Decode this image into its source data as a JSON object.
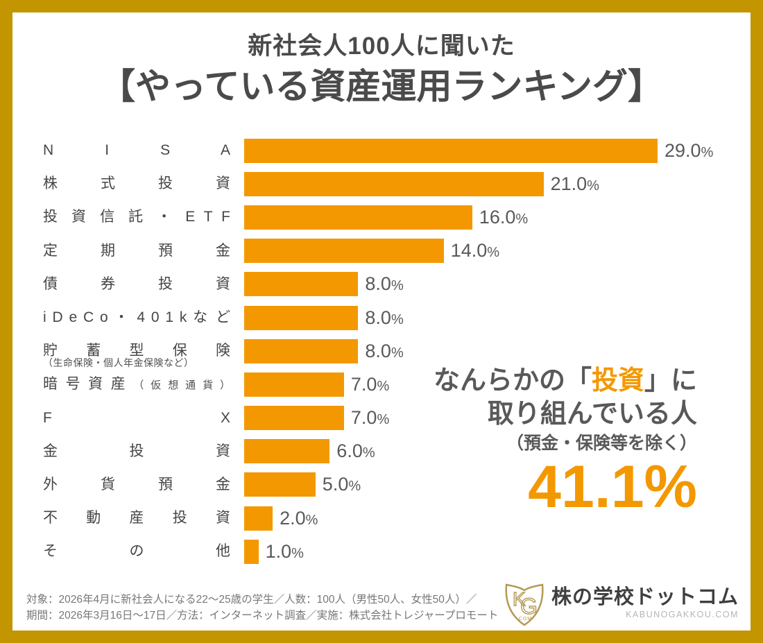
{
  "title": {
    "line1": "新社会人100人に聞いた",
    "line2": "【やっている資産運用ランキング】"
  },
  "chart_data": {
    "type": "bar",
    "orientation": "horizontal",
    "title": "やっている資産運用ランキング",
    "xlim": [
      0,
      29
    ],
    "grid": false,
    "bar_color": "#F39800",
    "rows": [
      {
        "category": "NISA",
        "value": 29.0,
        "label": "N I S A",
        "value_label": "29.0",
        "unit": "%"
      },
      {
        "category": "株式投資",
        "value": 21.0,
        "label": "株 式 投 資",
        "value_label": "21.0",
        "unit": "%"
      },
      {
        "category": "投資信託・ETF",
        "value": 16.0,
        "label": "投 資 信 託 ・ E T F",
        "value_label": "16.0",
        "unit": "%"
      },
      {
        "category": "定期預金",
        "value": 14.0,
        "label": "定 期 預 金",
        "value_label": "14.0",
        "unit": "%"
      },
      {
        "category": "債券投資",
        "value": 8.0,
        "label": "債 券 投 資",
        "value_label": "8.0",
        "unit": "%"
      },
      {
        "category": "iDeCo・401kなど",
        "value": 8.0,
        "label": "i D e C o ・ 4 0 1 k な ど",
        "value_label": "8.0",
        "unit": "%"
      },
      {
        "category": "貯蓄型保険（生命保険・個人年金保険など）",
        "value": 8.0,
        "label": "貯 蓄 型 保 険",
        "note_below": "（生命保険・個人年金保険など）",
        "value_label": "8.0",
        "unit": "%"
      },
      {
        "category": "暗号資産（仮想通貨）",
        "value": 7.0,
        "label": "暗 号 資 産",
        "note_inline": "（ 仮 想 通 貨 ）",
        "value_label": "7.0",
        "unit": "%"
      },
      {
        "category": "FX",
        "value": 7.0,
        "label": "F X",
        "value_label": "7.0",
        "unit": "%"
      },
      {
        "category": "金投資",
        "value": 6.0,
        "label": "金 投 資",
        "value_label": "6.0",
        "unit": "%"
      },
      {
        "category": "外貨預金",
        "value": 5.0,
        "label": "外 貨 預 金",
        "value_label": "5.0",
        "unit": "%"
      },
      {
        "category": "不動産投資",
        "value": 2.0,
        "label": "不 動 産 投 資",
        "value_label": "2.0",
        "unit": "%"
      },
      {
        "category": "その他",
        "value": 1.0,
        "label": "そ の 他",
        "value_label": "1.0",
        "unit": "%"
      }
    ]
  },
  "callout": {
    "line1_pre": "なんらかの「",
    "line1_highlight": "投資",
    "line1_post": "」に",
    "line2": "取り組んでいる人",
    "note": "（預金・保険等を除く）",
    "big_value": "41.1%"
  },
  "footer": {
    "line1": "対象：2026年4月に新社会人になる22〜25歳の学生／人数：100人（男性50人、女性50人）／",
    "line2": "期間：2026年3月16日〜17日／方法：インターネット調査／実施：株式会社トレジャープロモート"
  },
  "logo": {
    "shield_letter_k": "K",
    "shield_letter_g": "G",
    "shield_sub": ".COM",
    "name": "株の学校ドットコム",
    "domain": "KABUNOGAKKOU.COM"
  },
  "colors": {
    "accent_orange": "#F39800",
    "frame_gold": "#C39500",
    "logo_gold": "#B49A55",
    "text_dark": "#4A4A4A",
    "text_gray": "#595959",
    "footer_gray": "#777777"
  }
}
